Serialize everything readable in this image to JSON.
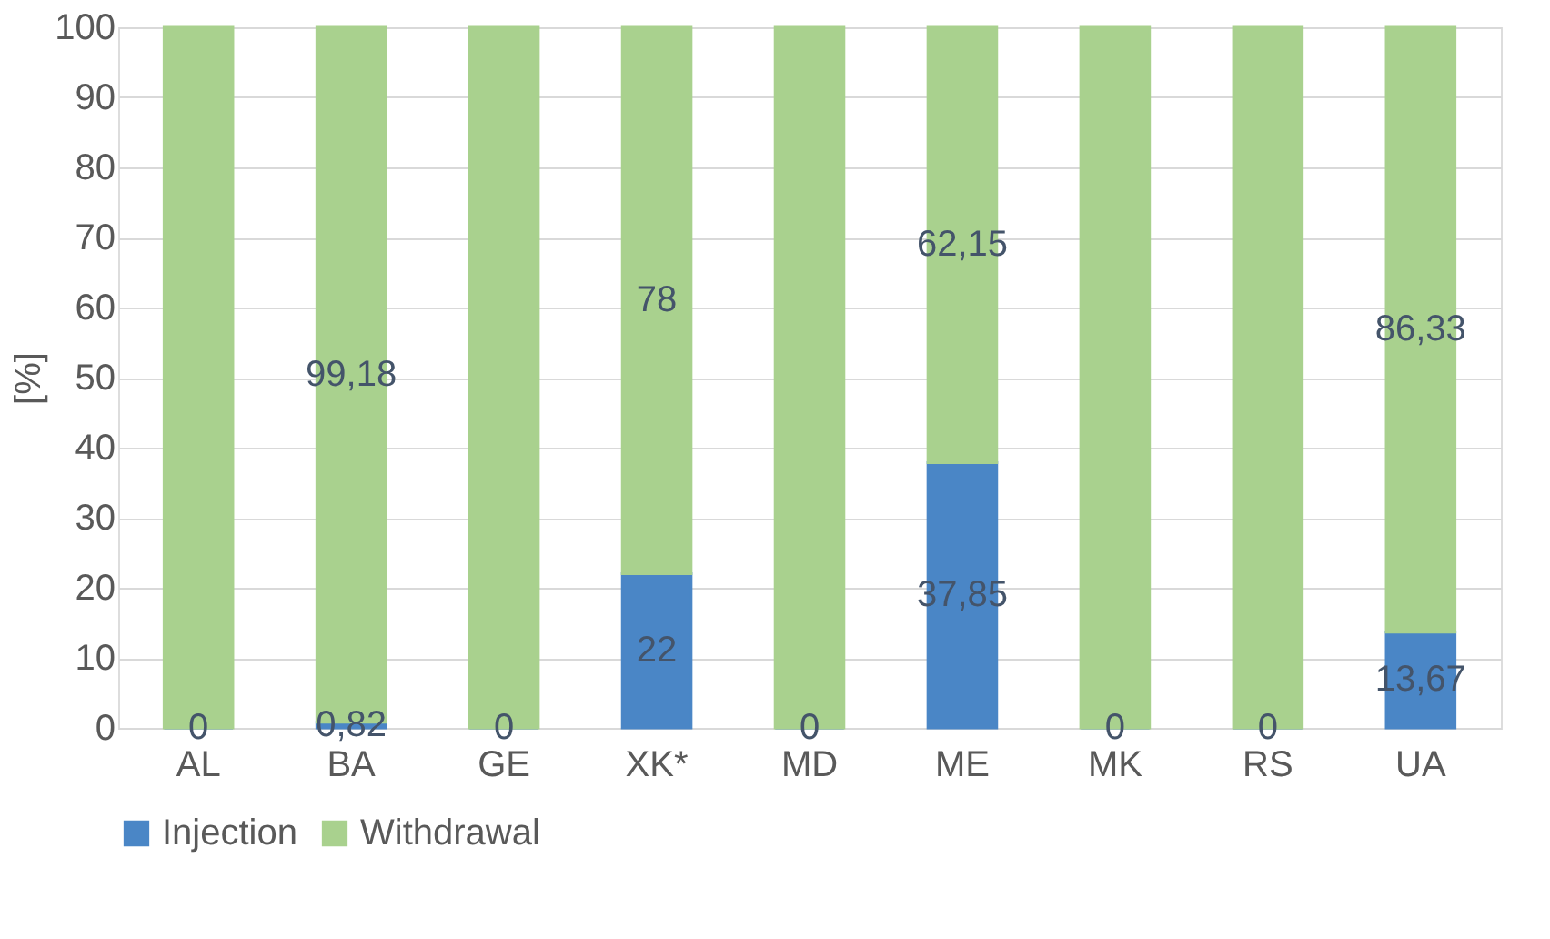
{
  "chart_data": {
    "type": "bar",
    "stacked": true,
    "ylabel": "[%]",
    "categories": [
      "AL",
      "BA",
      "GE",
      "XK*",
      "MD",
      "ME",
      "MK",
      "RS",
      "UA"
    ],
    "series": [
      {
        "name": "Injection",
        "color": "#4a86c6",
        "values": [
          0,
          0.82,
          0,
          22,
          0,
          37.85,
          0,
          0,
          13.67
        ],
        "value_labels": [
          "0",
          "0,82",
          "0",
          "22",
          "0",
          "37,85",
          "0",
          "0",
          "13,67"
        ]
      },
      {
        "name": "Withdrawal",
        "color": "#a9d18e",
        "values": [
          100,
          99.18,
          100,
          78,
          100,
          62.15,
          100,
          100,
          86.33
        ],
        "value_labels": [
          null,
          "99,18",
          null,
          "78",
          null,
          "62,15",
          null,
          null,
          "86,33"
        ]
      }
    ],
    "ylim": [
      0,
      100
    ],
    "yticks": [
      0,
      10,
      20,
      30,
      40,
      50,
      60,
      70,
      80,
      90,
      100
    ],
    "grid": "y",
    "legend": "bottom"
  }
}
